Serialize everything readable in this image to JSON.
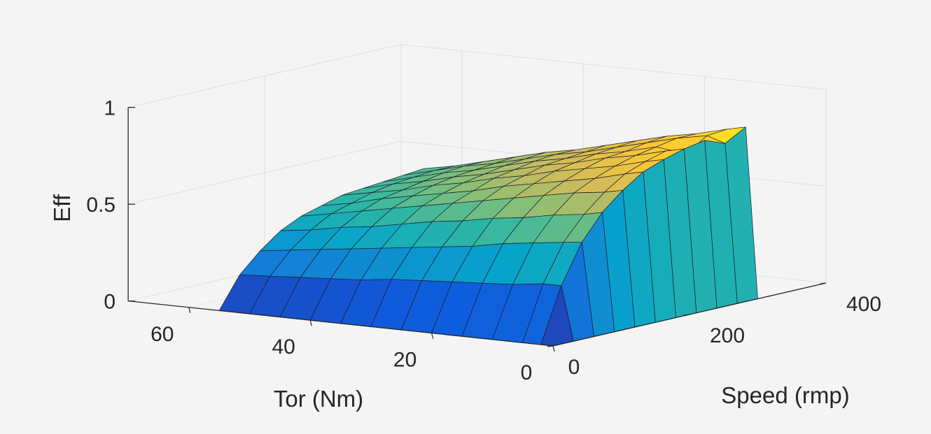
{
  "chart_data": {
    "type": "surface",
    "title": "",
    "xlabel": "Tor (Nm)",
    "ylabel": "Speed (rmp)",
    "zlabel": "Eff",
    "xlim": [
      0,
      70
    ],
    "ylim": [
      0,
      400
    ],
    "zlim": [
      0,
      1
    ],
    "xticks": [
      "0",
      "20",
      "40",
      "60"
    ],
    "xtick_values": [
      0,
      20,
      40,
      60
    ],
    "yticks": [
      "0",
      "200",
      "400"
    ],
    "ytick_values": [
      0,
      200,
      400
    ],
    "zticks": [
      "0",
      "0.5",
      "1"
    ],
    "ztick_values": [
      0,
      0.5,
      1
    ],
    "grid": true,
    "colormap": "parula",
    "colormap_stops": [
      "#352a87",
      "#0f5cdd",
      "#1481d6",
      "#06a4ca",
      "#2eb7a4",
      "#87bf77",
      "#d1bb59",
      "#fec832",
      "#f9fb0e"
    ],
    "tor": [
      0,
      2,
      5,
      10,
      15,
      20,
      25,
      30,
      35,
      40,
      45,
      50,
      55
    ],
    "speed": [
      0,
      30,
      60,
      90,
      120,
      150,
      180,
      210,
      240,
      270,
      300
    ],
    "eff": [
      [
        0,
        0,
        0,
        0,
        0,
        0,
        0,
        0,
        0,
        0,
        0
      ],
      [
        0,
        0.28,
        0.48,
        0.61,
        0.7,
        0.77,
        0.81,
        0.84,
        0.86,
        0.82,
        0.88
      ],
      [
        0,
        0.28,
        0.47,
        0.59,
        0.68,
        0.75,
        0.79,
        0.82,
        0.78,
        0.85,
        0.86
      ],
      [
        0,
        0.26,
        0.45,
        0.57,
        0.66,
        0.71,
        0.75,
        0.78,
        0.8,
        0.82,
        0.82
      ],
      [
        0,
        0.25,
        0.43,
        0.54,
        0.63,
        0.68,
        0.72,
        0.75,
        0.76,
        0.78,
        0.79
      ],
      [
        0,
        0.24,
        0.4,
        0.52,
        0.6,
        0.65,
        0.69,
        0.71,
        0.73,
        0.74,
        0.75
      ],
      [
        0,
        0.23,
        0.38,
        0.49,
        0.57,
        0.62,
        0.65,
        0.68,
        0.69,
        0.7,
        0.71
      ],
      [
        0,
        0.22,
        0.36,
        0.47,
        0.54,
        0.58,
        0.62,
        0.64,
        0.66,
        0.67,
        0.67
      ],
      [
        0,
        0.2,
        0.34,
        0.44,
        0.51,
        0.55,
        0.58,
        0.6,
        0.62,
        0.63,
        0.64
      ],
      [
        0,
        0.19,
        0.32,
        0.41,
        0.48,
        0.52,
        0.55,
        0.57,
        0.58,
        0.59,
        0.6
      ],
      [
        0,
        0.18,
        0.3,
        0.39,
        0.45,
        0.49,
        0.51,
        0.53,
        0.55,
        0.56,
        0.56
      ],
      [
        0,
        0.17,
        0.28,
        0.36,
        0.42,
        0.45,
        0.48,
        0.5,
        0.51,
        0.52,
        0.52
      ],
      [
        0,
        0.16,
        0.26,
        0.34,
        0.39,
        0.42,
        0.45,
        0.46,
        0.47,
        0.48,
        0.49
      ]
    ]
  }
}
